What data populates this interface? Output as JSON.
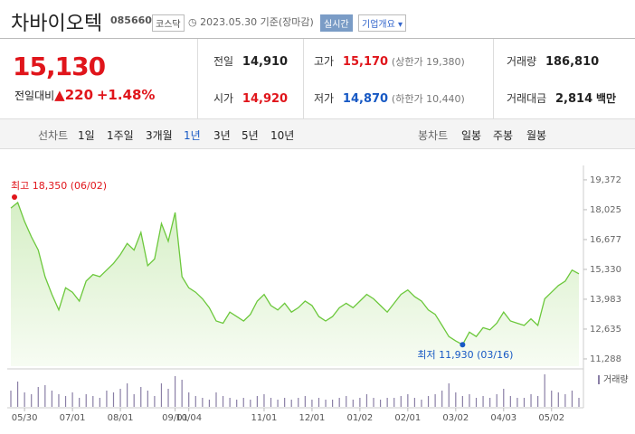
{
  "header": {
    "title": "차바이오텍",
    "code": "085660",
    "market": "코스닥",
    "date": "2023.05.30",
    "basis": "기준(장마감)",
    "realtime": "실시간",
    "overview": "기업개요"
  },
  "quote": {
    "price": "15,130",
    "change_label": "전일대비",
    "change": "220",
    "change_pct": "+1.48%",
    "items": [
      [
        {
          "label": "전일",
          "value": "14,910"
        },
        {
          "label": "고가",
          "value": "15,170",
          "sub": "(상한가 19,380)"
        },
        {
          "label": "거래량",
          "value": "186,810"
        }
      ],
      [
        {
          "label": "시가",
          "value": "14,920"
        },
        {
          "label": "저가",
          "value": "14,870",
          "sub": "(하한가 10,440)"
        },
        {
          "label": "거래대금",
          "value": "2,814",
          "unit": "백만"
        }
      ]
    ]
  },
  "period_bar": {
    "line_label": "선차트",
    "line_periods": [
      "1일",
      "1주일",
      "3개월",
      "1년",
      "3년",
      "5년",
      "10년"
    ],
    "selected": "1년",
    "candle_label": "봉차트",
    "candle_periods": [
      "일봉",
      "주봉",
      "월봉"
    ]
  },
  "chart_data": {
    "type": "line",
    "color": "#6cc83c",
    "categories": [
      null,
      null,
      "05/30",
      null,
      null,
      null,
      null,
      null,
      null,
      "07/01",
      null,
      null,
      null,
      null,
      null,
      null,
      "08/01",
      null,
      null,
      null,
      null,
      null,
      null,
      null,
      "09/01",
      null,
      "10/04",
      null,
      null,
      null,
      null,
      null,
      null,
      null,
      null,
      null,
      null,
      "11/01",
      null,
      null,
      null,
      null,
      null,
      null,
      "12/01",
      null,
      null,
      null,
      null,
      null,
      null,
      "01/02",
      null,
      null,
      null,
      null,
      null,
      null,
      "02/01",
      null,
      null,
      null,
      null,
      null,
      null,
      "03/02",
      null,
      null,
      null,
      null,
      null,
      null,
      "04/03",
      null,
      null,
      null,
      null,
      null,
      null,
      "05/02",
      null,
      null,
      null,
      null
    ],
    "values": [
      18100,
      18350,
      17500,
      16800,
      16200,
      15000,
      14200,
      13500,
      14500,
      14300,
      13900,
      14800,
      15100,
      15000,
      15300,
      15600,
      16000,
      16500,
      16200,
      17000,
      15500,
      15800,
      17400,
      16600,
      17900,
      15000,
      14500,
      14300,
      14000,
      13600,
      13000,
      12900,
      13400,
      13200,
      13000,
      13300,
      13900,
      14200,
      13700,
      13500,
      13800,
      13400,
      13600,
      13900,
      13700,
      13200,
      13000,
      13200,
      13600,
      13800,
      13600,
      13900,
      14200,
      14000,
      13700,
      13400,
      13800,
      14200,
      14400,
      14100,
      13900,
      13500,
      13300,
      12800,
      12300,
      12100,
      11930,
      12500,
      12300,
      12700,
      12600,
      12900,
      13400,
      13000,
      12900,
      12800,
      13100,
      12800,
      14000,
      14300,
      14600,
      14800,
      15300,
      15130
    ],
    "volume": [
      900000,
      1400000,
      800000,
      700000,
      1100000,
      1200000,
      900000,
      700000,
      600000,
      800000,
      500000,
      700000,
      600000,
      500000,
      900000,
      800000,
      1000000,
      1300000,
      700000,
      1100000,
      900000,
      600000,
      1300000,
      1000000,
      1700000,
      1500000,
      800000,
      600000,
      500000,
      400000,
      800000,
      600000,
      500000,
      400000,
      500000,
      400000,
      600000,
      700000,
      500000,
      400000,
      500000,
      400000,
      500000,
      600000,
      400000,
      500000,
      400000,
      400000,
      500000,
      600000,
      400000,
      500000,
      700000,
      500000,
      400000,
      500000,
      500000,
      600000,
      700000,
      500000,
      400000,
      600000,
      700000,
      900000,
      1300000,
      800000,
      600000,
      700000,
      500000,
      600000,
      500000,
      700000,
      1000000,
      600000,
      500000,
      500000,
      700000,
      600000,
      1800000,
      900000,
      800000,
      700000,
      900000,
      500000
    ],
    "volume_label": "거래량",
    "ylim": [
      10960,
      19940
    ],
    "yticks": [
      {
        "value": 11288,
        "label": "11,288"
      },
      {
        "value": 12635,
        "label": "12,635"
      },
      {
        "value": 13983,
        "label": "13,983"
      },
      {
        "value": 15330,
        "label": "15,330"
      },
      {
        "value": 16677,
        "label": "16,677"
      },
      {
        "value": 18025,
        "label": "18,025"
      },
      {
        "value": 19372,
        "label": "19,372"
      }
    ],
    "high": {
      "label": "최고",
      "value": 18350,
      "value_label": "18,350",
      "date": "(06/02)"
    },
    "low": {
      "label": "최저",
      "value": 11930,
      "value_label": "11,930",
      "date": "(03/16)"
    }
  }
}
